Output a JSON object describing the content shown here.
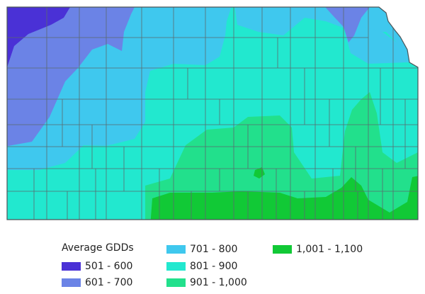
{
  "legend": {
    "title": "Average GDDs",
    "items": [
      {
        "label": "501 - 600",
        "color": "#4a31d6"
      },
      {
        "label": "601 - 700",
        "color": "#6b83e6"
      },
      {
        "label": "701 - 800",
        "color": "#3fc8ee"
      },
      {
        "label": "801 - 900",
        "color": "#22e8cf"
      },
      {
        "label": "901 - 1,000",
        "color": "#22e08c"
      },
      {
        "label": "1,001 - 1,100",
        "color": "#11c936"
      }
    ]
  },
  "colors": {
    "county_border": "#5a6a6e",
    "state_border": "#4a5458"
  }
}
